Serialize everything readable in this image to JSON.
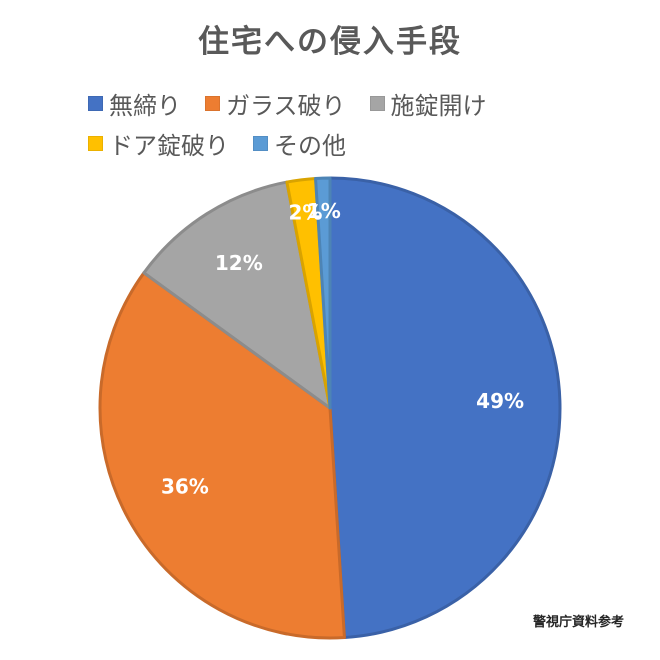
{
  "chart_data": {
    "type": "pie",
    "title": "住宅への侵入手段",
    "categories": [
      "無締り",
      "ガラス破り",
      "施錠開け",
      "ドア錠破り",
      "その他"
    ],
    "values": [
      49,
      36,
      12,
      2,
      1
    ],
    "data_labels": [
      "49%",
      "36%",
      "12%",
      "2%",
      "1%"
    ],
    "colors": [
      "#4472C4",
      "#ED7D31",
      "#A5A5A5",
      "#FFC000",
      "#5B9BD5"
    ],
    "legend_position": "top",
    "start_angle_deg": 0,
    "direction": "clockwise"
  },
  "source_note": "警視庁資料参考"
}
